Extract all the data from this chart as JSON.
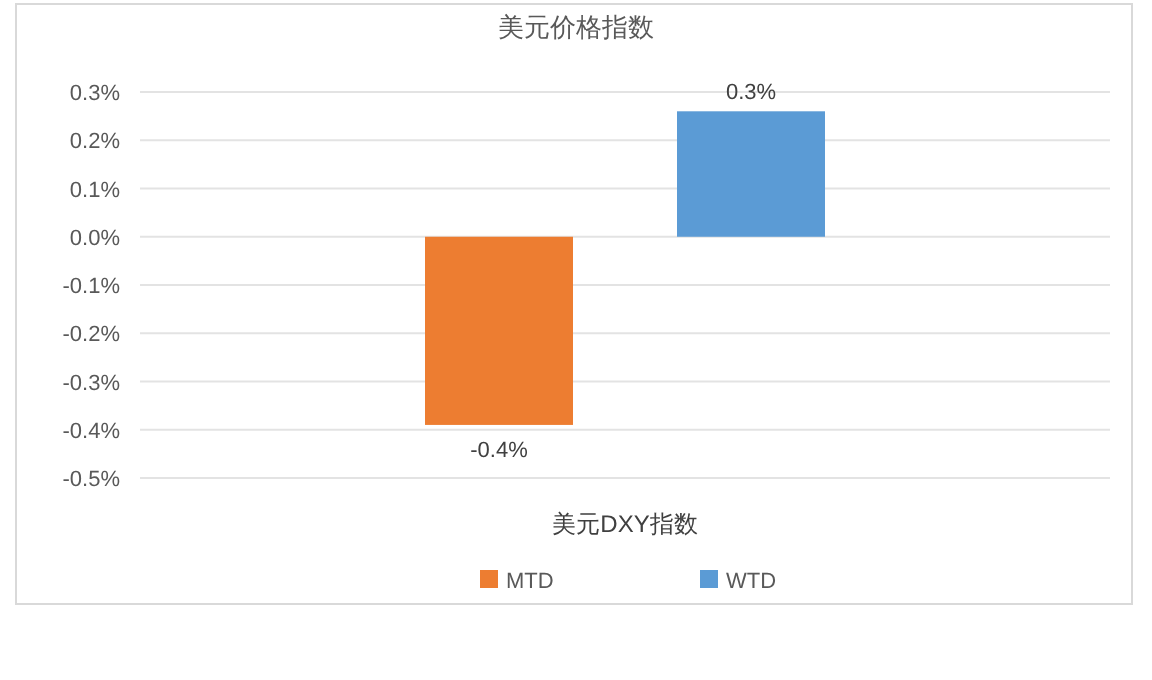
{
  "chart_data": {
    "type": "bar",
    "title": "美元价格指数",
    "categories": [
      "美元DXY指数"
    ],
    "series": [
      {
        "name": "MTD",
        "color": "#ed7d31",
        "values": [
          -0.39
        ],
        "value_labels": [
          "-0.4%"
        ]
      },
      {
        "name": "WTD",
        "color": "#5b9bd5",
        "values": [
          0.26
        ],
        "value_labels": [
          "0.3%"
        ]
      }
    ],
    "ylim": [
      -0.5,
      0.3
    ],
    "yticks": [
      {
        "value": 0.3,
        "label": "0.3%"
      },
      {
        "value": 0.2,
        "label": "0.2%"
      },
      {
        "value": 0.1,
        "label": "0.1%"
      },
      {
        "value": 0,
        "label": "0.0%"
      },
      {
        "value": -0.1,
        "label": "-0.1%"
      },
      {
        "value": -0.2,
        "label": "-0.2%"
      },
      {
        "value": -0.3,
        "label": "-0.3%"
      },
      {
        "value": -0.4,
        "label": "-0.4%"
      },
      {
        "value": -0.5,
        "label": "-0.5%"
      }
    ],
    "grid": "y",
    "legend": "bottom"
  }
}
